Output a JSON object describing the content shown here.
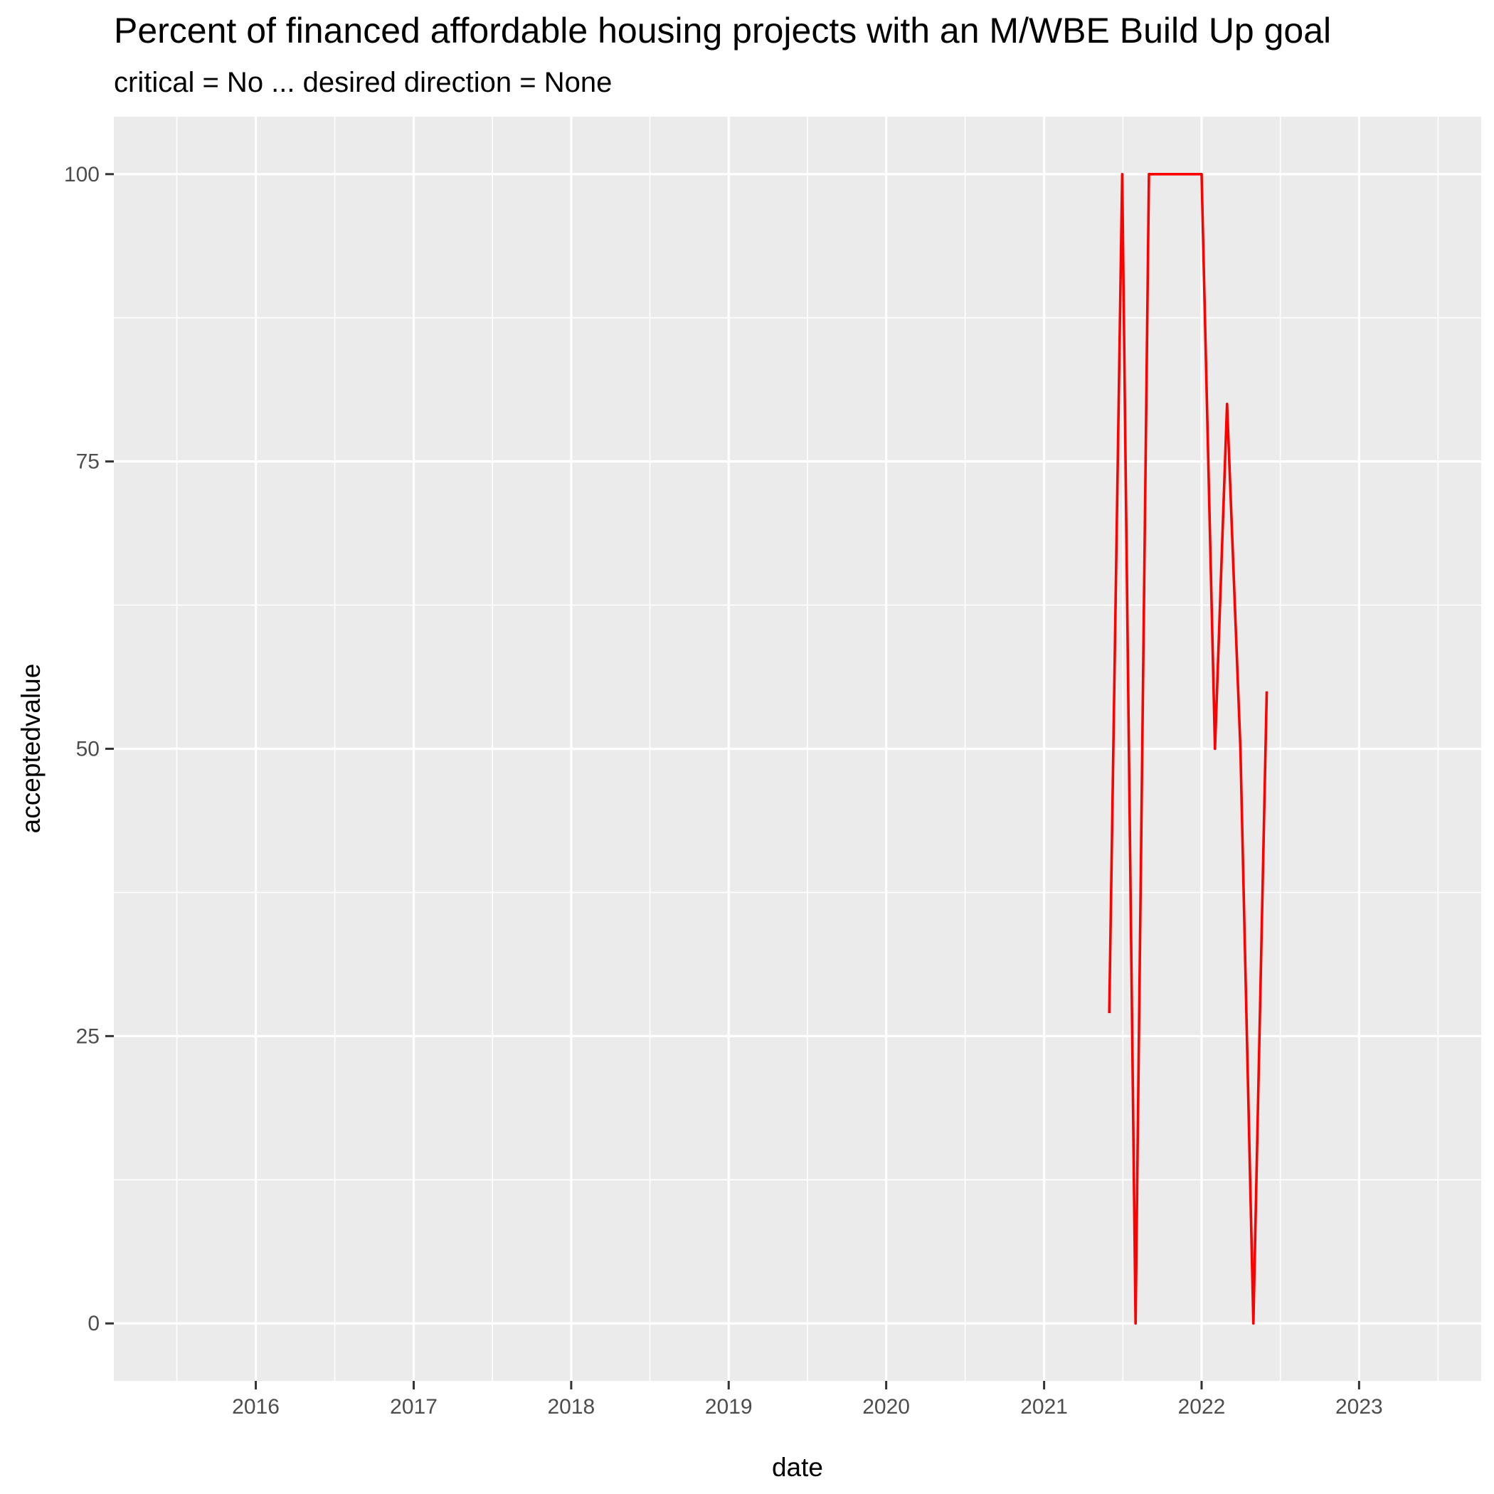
{
  "chart_data": {
    "type": "line",
    "title": "Percent of financed affordable housing projects with an M/WBE Build Up goal",
    "subtitle": "critical = No ... desired direction = None",
    "xlabel": "date",
    "ylabel": "acceptedvalue",
    "x_type": "date",
    "xlim": [
      "2015-02-06",
      "2023-10-11"
    ],
    "ylim": [
      -5,
      105
    ],
    "x_ticks": [
      {
        "label": "2016",
        "date": "2016-01-01"
      },
      {
        "label": "2017",
        "date": "2017-01-01"
      },
      {
        "label": "2018",
        "date": "2018-01-01"
      },
      {
        "label": "2019",
        "date": "2019-01-01"
      },
      {
        "label": "2020",
        "date": "2020-01-01"
      },
      {
        "label": "2021",
        "date": "2021-01-01"
      },
      {
        "label": "2022",
        "date": "2022-01-01"
      },
      {
        "label": "2023",
        "date": "2023-01-01"
      }
    ],
    "y_ticks": [
      0,
      25,
      50,
      75,
      100
    ],
    "grid": true,
    "line_color": "#ff0000",
    "panel_background": "#ebebeb",
    "series": [
      {
        "x": [
          "2021-06-01",
          "2021-07-01",
          "2021-08-01",
          "2021-09-01",
          "2021-10-01",
          "2021-11-01",
          "2021-12-01",
          "2022-01-01",
          "2022-02-01",
          "2022-03-01",
          "2022-04-01",
          "2022-05-01",
          "2022-06-01"
        ],
        "values": [
          27,
          100,
          0,
          100,
          100,
          100,
          100,
          100,
          50,
          80,
          50,
          0,
          55
        ]
      }
    ]
  }
}
